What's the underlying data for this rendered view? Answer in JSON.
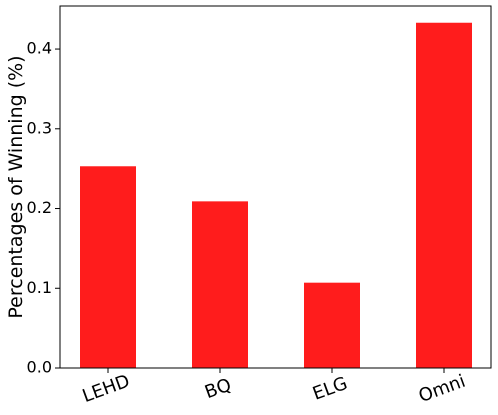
{
  "chart_data": {
    "type": "bar",
    "y_label": "Percentages of Winning (%)",
    "categories": [
      "LEHD",
      "BQ",
      "ELG",
      "Omni"
    ],
    "values": [
      0.253,
      0.209,
      0.107,
      0.433
    ],
    "color": "#ff1c1c",
    "ylim": [
      0,
      0.454
    ],
    "yticks": [
      {
        "value": 0,
        "label": "0.0"
      },
      0.1,
      0.2,
      0.3,
      0.4
    ]
  }
}
